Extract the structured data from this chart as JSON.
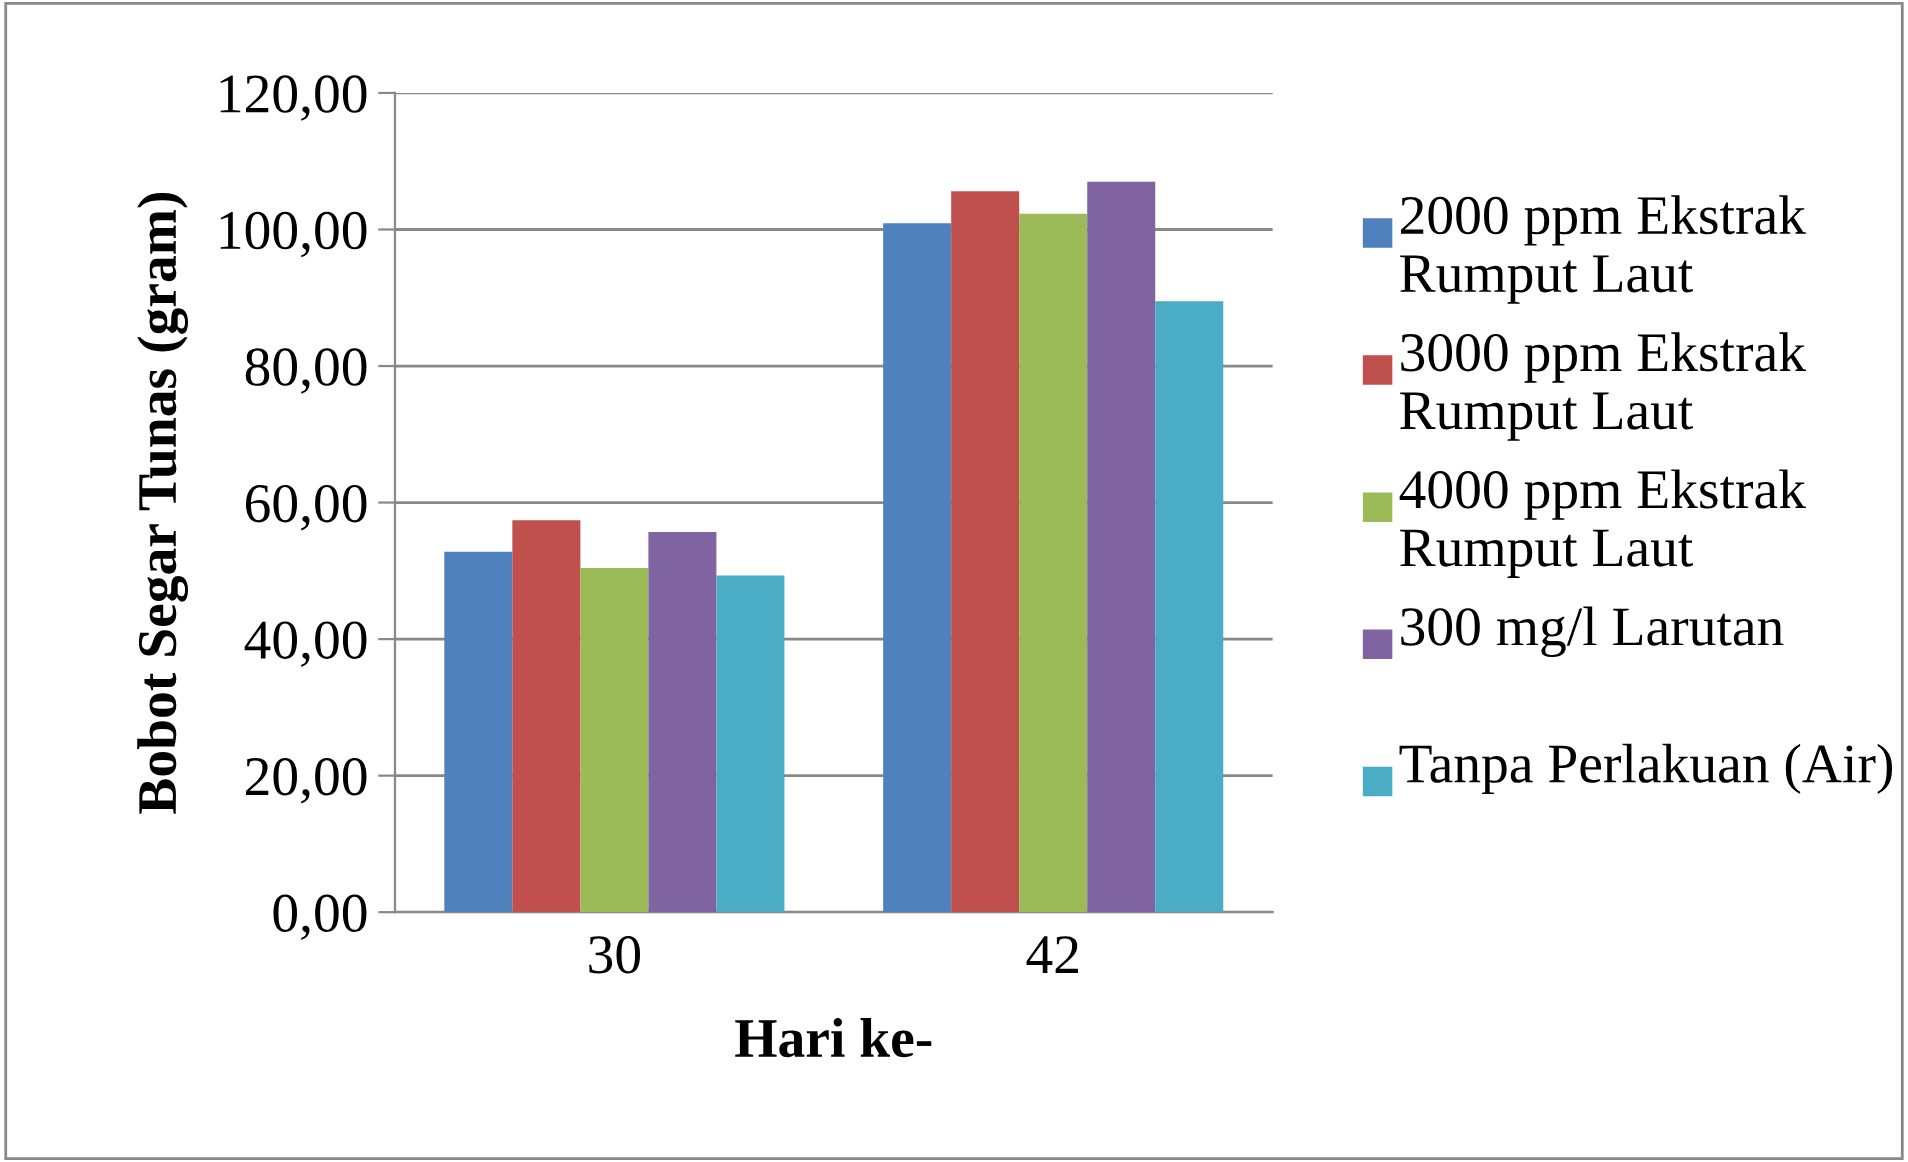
{
  "chart_data": {
    "type": "bar",
    "xlabel": "Hari ke-",
    "ylabel": "Bobot Segar Tunas (gram)",
    "categories": [
      "30",
      "42"
    ],
    "series": [
      {
        "name": "2000 ppm Ekstrak Rumput Laut",
        "color": "#4f81bd",
        "values": [
          52.8,
          100.9
        ]
      },
      {
        "name": "3000 ppm Ekstrak Rumput Laut",
        "color": "#c0504d",
        "values": [
          57.4,
          105.6
        ]
      },
      {
        "name": "4000 ppm Ekstrak Rumput Laut",
        "color": "#9bbb59",
        "values": [
          50.4,
          102.3
        ]
      },
      {
        "name": "300 mg/l Larutan",
        "color": "#8064a2",
        "values": [
          55.7,
          107.0
        ]
      },
      {
        "name": "Tanpa Perlakuan (Air)",
        "color": "#4bacc6",
        "values": [
          49.3,
          89.5
        ]
      }
    ],
    "ylim": [
      0,
      120
    ],
    "yticks": [
      {
        "value": 0,
        "label": "0,00"
      },
      {
        "value": 20,
        "label": "20,00"
      },
      {
        "value": 40,
        "label": "40,00"
      },
      {
        "value": 60,
        "label": "60,00"
      },
      {
        "value": 80,
        "label": "80,00"
      },
      {
        "value": 100,
        "label": "100,00"
      },
      {
        "value": 120,
        "label": "120,00"
      }
    ],
    "grid": "y",
    "legend": "right"
  }
}
